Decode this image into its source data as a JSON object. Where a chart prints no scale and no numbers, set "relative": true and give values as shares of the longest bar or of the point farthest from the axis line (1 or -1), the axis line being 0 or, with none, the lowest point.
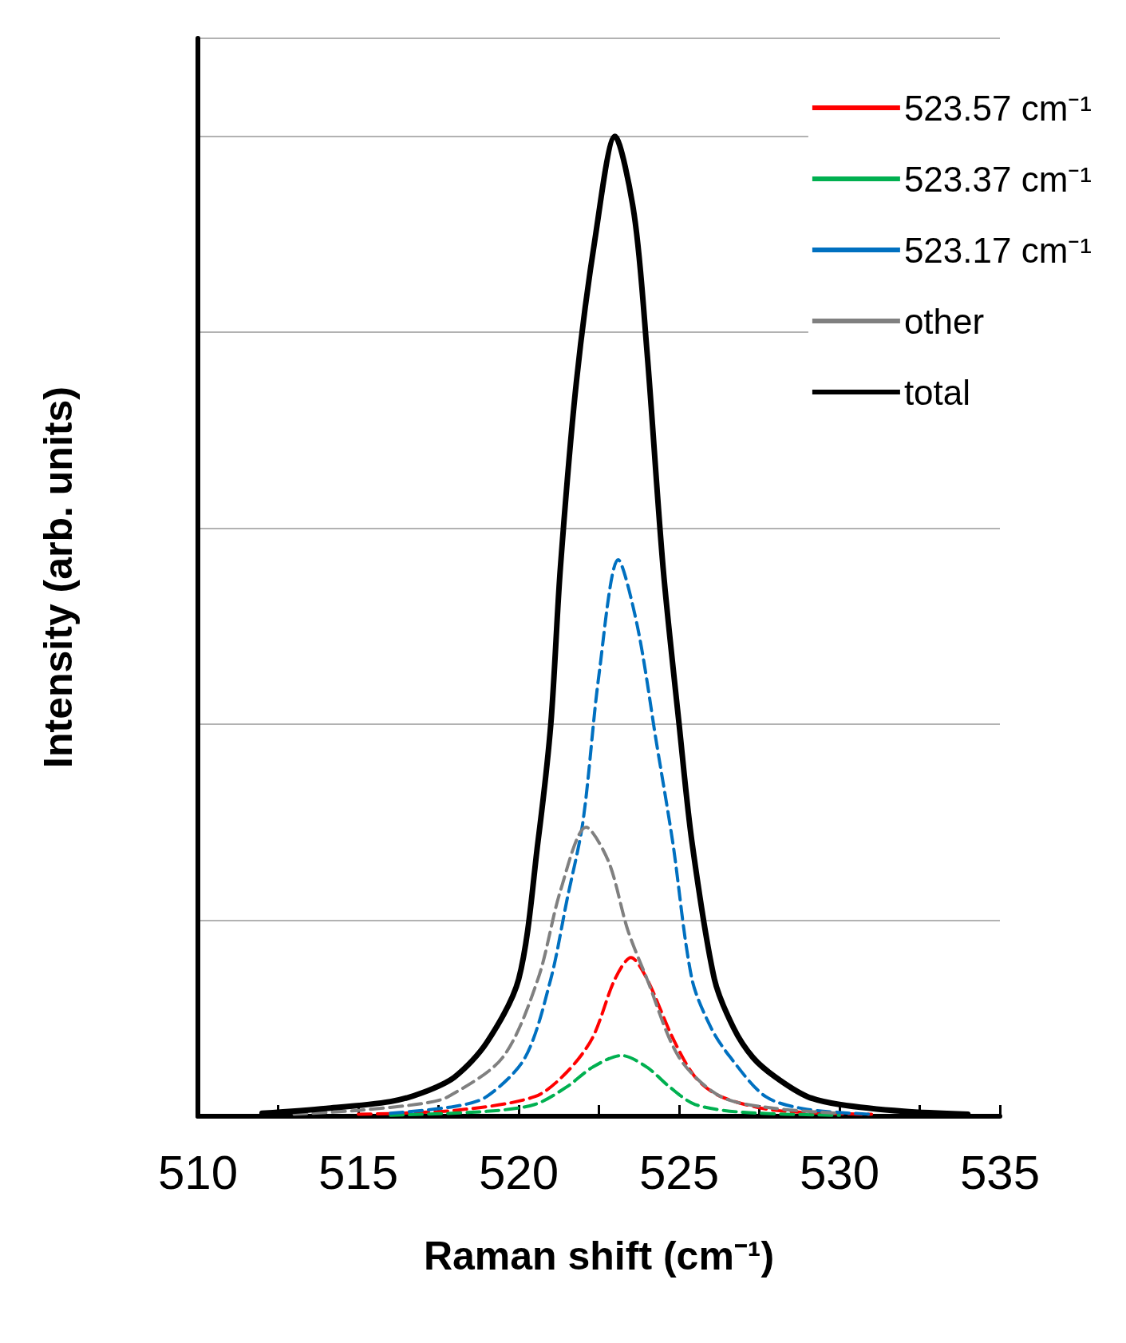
{
  "chart_data": {
    "type": "line",
    "relative": true,
    "xlabel": "Raman shift (cm⁻¹)",
    "ylabel": "Intensity (arb. units)",
    "xlim": [
      510,
      535
    ],
    "xticks": [
      510,
      515,
      520,
      525,
      530,
      535
    ],
    "grid": "y",
    "legend": "top right",
    "marker": "none",
    "series": [
      {
        "name": "523.57 cm⁻¹",
        "color": "#ff0000",
        "line_style": "dashed",
        "x": [
          515,
          518,
          520.5,
          521.5,
          522.3,
          523,
          523.5,
          524,
          524.8,
          525.5,
          526.3,
          528,
          531
        ],
        "values": [
          0.002,
          0.006,
          0.02,
          0.045,
          0.08,
          0.14,
          0.162,
          0.14,
          0.08,
          0.04,
          0.02,
          0.006,
          0.002
        ]
      },
      {
        "name": "523.37 cm⁻¹",
        "color": "#00b050",
        "line_style": "dashed",
        "x": [
          516,
          519,
          520.5,
          521.5,
          522.3,
          523.2,
          524,
          524.7,
          525.5,
          527,
          530
        ],
        "values": [
          0.001,
          0.005,
          0.012,
          0.03,
          0.05,
          0.062,
          0.05,
          0.03,
          0.012,
          0.004,
          0.001
        ]
      },
      {
        "name": "523.17 cm⁻¹",
        "color": "#0070c0",
        "line_style": "dashed",
        "x": [
          516,
          518,
          519,
          520.2,
          521,
          521.5,
          522,
          522.5,
          523.1,
          523.7,
          524.3,
          524.8,
          525.4,
          526,
          526.6,
          527.7,
          529,
          531
        ],
        "values": [
          0.003,
          0.01,
          0.02,
          0.06,
          0.14,
          0.22,
          0.3,
          0.45,
          0.568,
          0.5,
          0.38,
          0.28,
          0.14,
          0.09,
          0.06,
          0.02,
          0.007,
          0.002
        ]
      },
      {
        "name": "other",
        "color": "#808080",
        "line_style": "dashed",
        "x": [
          513,
          515,
          517,
          517.8,
          519.5,
          520.6,
          521.3,
          522.1,
          522.8,
          523.4,
          524,
          525,
          526.3,
          528,
          530
        ],
        "values": [
          0.002,
          0.006,
          0.013,
          0.02,
          0.06,
          0.14,
          0.23,
          0.295,
          0.26,
          0.19,
          0.14,
          0.06,
          0.02,
          0.008,
          0.003
        ]
      },
      {
        "name": "total",
        "color": "#000000",
        "line_style": "solid",
        "x": [
          512,
          514,
          516,
          517,
          518,
          519,
          520,
          520.6,
          521,
          521.3,
          521.8,
          522.4,
          523,
          523.6,
          524,
          524.5,
          525,
          525.4,
          526.1,
          526.7,
          527.3,
          528,
          529,
          530,
          532,
          534
        ],
        "values": [
          0.003,
          0.008,
          0.015,
          0.024,
          0.04,
          0.075,
          0.14,
          0.28,
          0.4,
          0.56,
          0.75,
          0.9,
          1,
          0.92,
          0.78,
          0.56,
          0.4,
          0.28,
          0.14,
          0.09,
          0.06,
          0.04,
          0.02,
          0.012,
          0.005,
          0.002
        ]
      }
    ]
  }
}
